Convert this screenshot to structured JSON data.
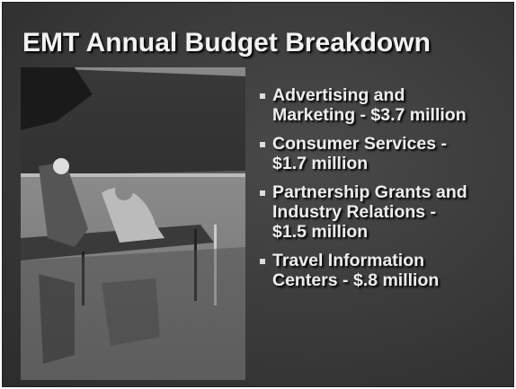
{
  "title": "EMT Annual Budget Breakdown",
  "bullets": [
    {
      "lines": [
        "Advertising and",
        "Marketing - $3.7 million"
      ]
    },
    {
      "lines": [
        "Consumer Services -",
        "$1.7 million"
      ]
    },
    {
      "lines": [
        "Partnership Grants and",
        "Industry Relations -",
        "$1.5 million"
      ]
    },
    {
      "lines": [
        "Travel Information",
        "Centers - $.8 million"
      ]
    }
  ]
}
